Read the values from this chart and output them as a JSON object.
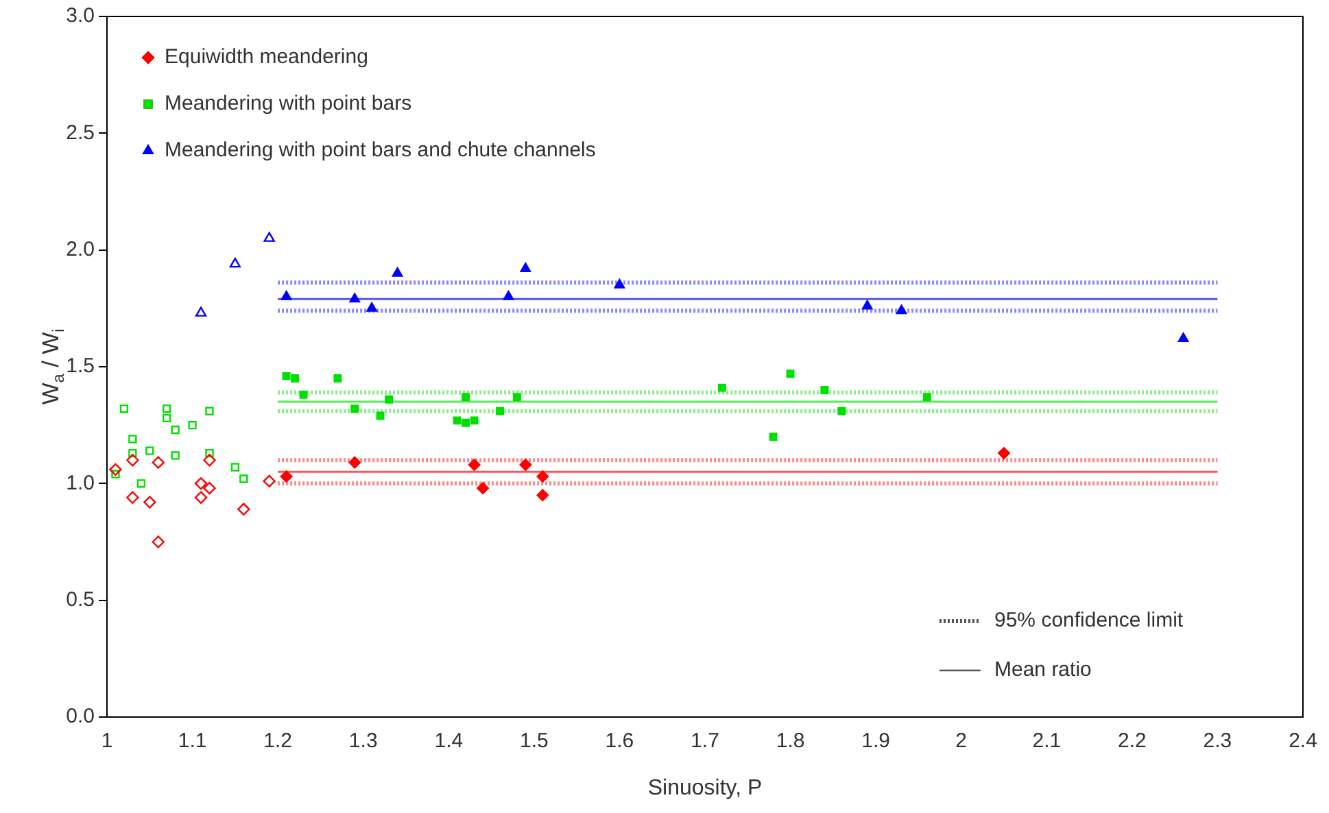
{
  "chart_data": {
    "type": "scatter",
    "xlabel": "Sinuosity, P",
    "ylabel": "W$_{a}$ / W$_{i}$",
    "xlim": [
      1,
      2.4
    ],
    "xticks": [
      1,
      1.1,
      1.2,
      1.3,
      1.4,
      1.5,
      1.6,
      1.7,
      1.8,
      1.9,
      2,
      2.1,
      2.2,
      2.3,
      2.4
    ],
    "ylim": [
      0,
      3
    ],
    "yticks": [
      {
        "value": 0,
        "label": "0.0"
      },
      {
        "value": 0.5,
        "label": "0.5"
      },
      {
        "value": 1,
        "label": "1.0"
      },
      {
        "value": 1.5,
        "label": "1.5"
      },
      {
        "value": 2,
        "label": "2.0"
      },
      {
        "value": 2.5,
        "label": "2.5"
      },
      {
        "value": 3,
        "label": "3.0"
      }
    ],
    "grid": false,
    "legend": "top left",
    "annotations": [
      "95% confidence limit",
      "Mean ratio"
    ],
    "series": [
      {
        "name": "Equiwidth meandering",
        "marker": "diamond",
        "color": "#ff0000",
        "x": [
          1.21,
          1.29,
          1.43,
          1.44,
          1.49,
          1.51,
          1.51,
          2.05
        ],
        "values": [
          1.03,
          1.09,
          1.08,
          0.98,
          1.08,
          1.03,
          0.95,
          1.13
        ]
      },
      {
        "name": "Meandering with point bars",
        "marker": "square",
        "color": "#00e000",
        "x": [
          1.21,
          1.22,
          1.27,
          1.23,
          1.29,
          1.32,
          1.33,
          1.42,
          1.41,
          1.42,
          1.43,
          1.46,
          1.48,
          1.72,
          1.8,
          1.84,
          1.86,
          1.96,
          1.78
        ],
        "values": [
          1.46,
          1.45,
          1.45,
          1.38,
          1.32,
          1.29,
          1.36,
          1.37,
          1.27,
          1.26,
          1.27,
          1.31,
          1.37,
          1.41,
          1.47,
          1.4,
          1.31,
          1.37,
          1.2
        ]
      },
      {
        "name": "Meandering with point bars and chute channels",
        "marker": "triangle",
        "color": "#0000ff",
        "x": [
          1.21,
          1.29,
          1.31,
          1.34,
          1.47,
          1.49,
          1.6,
          1.89,
          1.93,
          2.26
        ],
        "values": [
          1.8,
          1.79,
          1.75,
          1.9,
          1.8,
          1.92,
          1.85,
          1.76,
          1.74,
          1.62
        ]
      },
      {
        "marker": "diamond",
        "color": "#ff0000",
        "x": [
          1.01,
          1.03,
          1.06,
          1.03,
          1.05,
          1.06,
          1.11,
          1.11,
          1.12,
          1.12,
          1.16,
          1.19
        ],
        "values": [
          1.06,
          1.1,
          1.09,
          0.94,
          0.92,
          0.75,
          1,
          0.94,
          0.98,
          1.1,
          0.89,
          1.01
        ]
      },
      {
        "marker": "square",
        "color": "#00e000",
        "x": [
          1.02,
          1.07,
          1.07,
          1.12,
          1.03,
          1.03,
          1.05,
          1.08,
          1.1,
          1.08,
          1.12,
          1.01,
          1.04,
          1.15,
          1.16
        ],
        "values": [
          1.32,
          1.32,
          1.28,
          1.31,
          1.19,
          1.13,
          1.14,
          1.23,
          1.25,
          1.12,
          1.13,
          1.04,
          1,
          1.07,
          1.02
        ]
      },
      {
        "marker": "triangle",
        "color": "#0000ff",
        "x": [
          1.19,
          1.15,
          1.11
        ],
        "values": [
          2.05,
          1.94,
          1.73
        ]
      },
      {
        "type": "line",
        "line_style": "solid",
        "marker": "none",
        "color": "#5555ff",
        "x": [
          1.2,
          2.3
        ],
        "values": [
          1.79,
          1.79
        ]
      },
      {
        "type": "line",
        "line_style": "dotted",
        "marker": "none",
        "color": "#8888ff",
        "x": [
          1.2,
          2.3
        ],
        "values": [
          1.86,
          1.86
        ]
      },
      {
        "type": "line",
        "line_style": "dotted",
        "marker": "none",
        "color": "#8888ff",
        "x": [
          1.2,
          2.3
        ],
        "values": [
          1.74,
          1.74
        ]
      },
      {
        "type": "line",
        "line_style": "solid",
        "marker": "none",
        "color": "#55ee55",
        "x": [
          1.2,
          2.3
        ],
        "values": [
          1.35,
          1.35
        ]
      },
      {
        "type": "line",
        "line_style": "dotted",
        "marker": "none",
        "color": "#88ee88",
        "x": [
          1.2,
          2.3
        ],
        "values": [
          1.39,
          1.39
        ]
      },
      {
        "type": "line",
        "line_style": "dotted",
        "marker": "none",
        "color": "#88ee88",
        "x": [
          1.2,
          2.3
        ],
        "values": [
          1.31,
          1.31
        ]
      },
      {
        "type": "line",
        "line_style": "solid",
        "marker": "none",
        "color": "#ff5555",
        "x": [
          1.2,
          2.3
        ],
        "values": [
          1.05,
          1.05
        ]
      },
      {
        "type": "line",
        "line_style": "dotted",
        "marker": "none",
        "color": "#ff8888",
        "x": [
          1.2,
          2.3
        ],
        "values": [
          1.1,
          1.1
        ]
      },
      {
        "type": "line",
        "line_style": "dotted",
        "marker": "none",
        "color": "#ff8888",
        "x": [
          1.2,
          2.3
        ],
        "values": [
          1,
          1
        ]
      }
    ]
  }
}
